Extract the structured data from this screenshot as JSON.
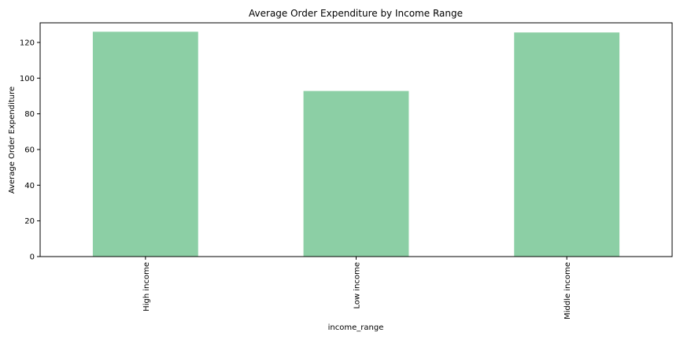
{
  "chart_data": {
    "type": "bar",
    "title": "Average Order Expenditure by Income Range",
    "xlabel": "income_range",
    "ylabel": "Average Order Expenditure",
    "categories": [
      "High income",
      "Low income",
      "Middle income"
    ],
    "values": [
      126.0,
      92.8,
      125.6
    ],
    "ylim": [
      0,
      131
    ],
    "yticks": [
      0,
      20,
      40,
      60,
      80,
      100,
      120
    ],
    "bar_color": "#8ccfa5",
    "grid": false,
    "legend": "none"
  }
}
